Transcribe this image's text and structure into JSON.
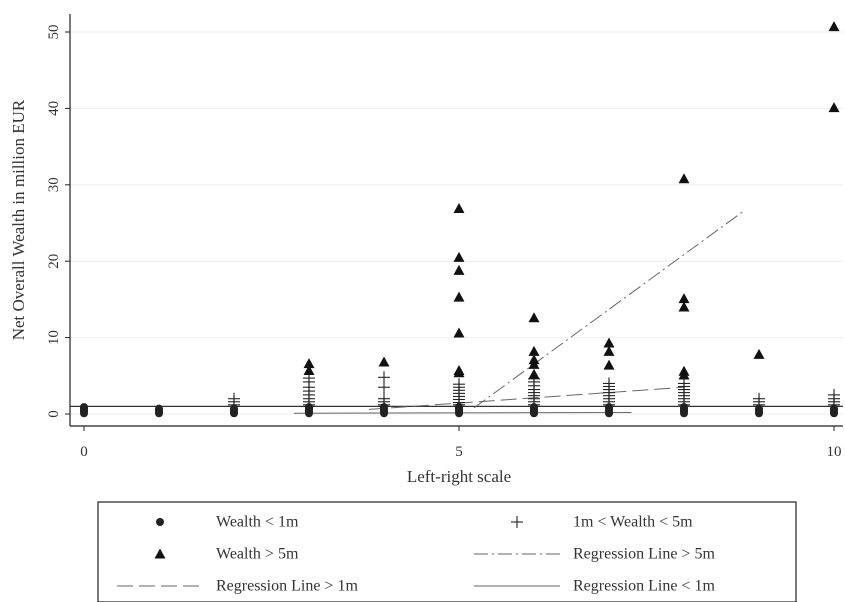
{
  "chart_data": {
    "type": "scatter",
    "title": "",
    "xlabel": "Left-right scale",
    "ylabel": "Net Overall Wealth in million EUR",
    "xlim": [
      0,
      10
    ],
    "ylim": [
      0,
      50
    ],
    "x_ticks": [
      "0",
      "5",
      "10"
    ],
    "y_ticks": [
      "0",
      "10",
      "20",
      "30",
      "40",
      "50"
    ],
    "grid": "horizontal",
    "legend_position": "bottom",
    "series": [
      {
        "name": "Wealth < 1m",
        "marker": "circle",
        "points": [
          [
            0,
            0.1
          ],
          [
            0,
            0.3
          ],
          [
            0,
            0.5
          ],
          [
            0,
            0.7
          ],
          [
            0,
            0.9
          ],
          [
            1,
            0.1
          ],
          [
            1,
            0.3
          ],
          [
            1,
            0.5
          ],
          [
            1,
            0.7
          ],
          [
            2,
            0.1
          ],
          [
            2,
            0.3
          ],
          [
            2,
            0.5
          ],
          [
            2,
            0.7
          ],
          [
            3,
            0.1
          ],
          [
            3,
            0.3
          ],
          [
            3,
            0.5
          ],
          [
            3,
            0.7
          ],
          [
            3,
            0.9
          ],
          [
            4,
            0.1
          ],
          [
            4,
            0.3
          ],
          [
            4,
            0.5
          ],
          [
            4,
            0.7
          ],
          [
            4,
            0.9
          ],
          [
            5,
            0.1
          ],
          [
            5,
            0.3
          ],
          [
            5,
            0.5
          ],
          [
            5,
            0.7
          ],
          [
            5,
            0.9
          ],
          [
            6,
            0.1
          ],
          [
            6,
            0.3
          ],
          [
            6,
            0.5
          ],
          [
            6,
            0.7
          ],
          [
            6,
            0.9
          ],
          [
            7,
            0.1
          ],
          [
            7,
            0.3
          ],
          [
            7,
            0.5
          ],
          [
            7,
            0.7
          ],
          [
            7,
            0.9
          ],
          [
            8,
            0.1
          ],
          [
            8,
            0.3
          ],
          [
            8,
            0.5
          ],
          [
            8,
            0.7
          ],
          [
            8,
            0.9
          ],
          [
            9,
            0.1
          ],
          [
            9,
            0.3
          ],
          [
            9,
            0.5
          ],
          [
            9,
            0.7
          ],
          [
            10,
            0.1
          ],
          [
            10,
            0.3
          ],
          [
            10,
            0.5
          ],
          [
            10,
            0.7
          ]
        ]
      },
      {
        "name": "1m < Wealth < 5m",
        "marker": "plus",
        "points": [
          [
            2,
            1.2
          ],
          [
            2,
            1.6
          ],
          [
            2,
            2.0
          ],
          [
            3,
            1.2
          ],
          [
            3,
            1.6
          ],
          [
            3,
            2.0
          ],
          [
            3,
            2.5
          ],
          [
            3,
            3.0
          ],
          [
            3,
            3.5
          ],
          [
            3,
            4.2
          ],
          [
            3,
            4.7
          ],
          [
            4,
            1.2
          ],
          [
            4,
            1.6
          ],
          [
            4,
            2.0
          ],
          [
            4,
            3.5
          ],
          [
            4,
            4.8
          ],
          [
            5,
            1.2
          ],
          [
            5,
            1.5
          ],
          [
            5,
            1.9
          ],
          [
            5,
            2.3
          ],
          [
            5,
            2.7
          ],
          [
            5,
            3.1
          ],
          [
            5,
            3.5
          ],
          [
            5,
            3.9
          ],
          [
            6,
            1.2
          ],
          [
            6,
            1.6
          ],
          [
            6,
            2.0
          ],
          [
            6,
            2.4
          ],
          [
            6,
            2.8
          ],
          [
            6,
            3.2
          ],
          [
            6,
            3.7
          ],
          [
            6,
            4.2
          ],
          [
            6,
            4.6
          ],
          [
            7,
            1.2
          ],
          [
            7,
            1.6
          ],
          [
            7,
            2.0
          ],
          [
            7,
            2.4
          ],
          [
            7,
            2.8
          ],
          [
            7,
            3.2
          ],
          [
            7,
            3.6
          ],
          [
            7,
            4.0
          ],
          [
            8,
            1.2
          ],
          [
            8,
            1.6
          ],
          [
            8,
            2.0
          ],
          [
            8,
            2.4
          ],
          [
            8,
            2.8
          ],
          [
            8,
            3.2
          ],
          [
            8,
            3.6
          ],
          [
            8,
            4.0
          ],
          [
            9,
            1.2
          ],
          [
            9,
            1.6
          ],
          [
            9,
            2.0
          ],
          [
            10,
            1.2
          ],
          [
            10,
            1.6
          ],
          [
            10,
            2.0
          ],
          [
            10,
            2.5
          ]
        ]
      },
      {
        "name": "Wealth > 5m",
        "marker": "triangle",
        "points": [
          [
            3,
            5.7
          ],
          [
            3,
            6.6
          ],
          [
            4,
            6.8
          ],
          [
            5,
            5.4
          ],
          [
            5,
            5.7
          ],
          [
            5,
            10.6
          ],
          [
            5,
            15.3
          ],
          [
            5,
            18.8
          ],
          [
            5,
            20.5
          ],
          [
            5,
            26.9
          ],
          [
            6,
            5.2
          ],
          [
            6,
            6.5
          ],
          [
            6,
            7.1
          ],
          [
            6,
            8.2
          ],
          [
            6,
            12.6
          ],
          [
            7,
            6.4
          ],
          [
            7,
            8.2
          ],
          [
            7,
            9.3
          ],
          [
            8,
            5.1
          ],
          [
            8,
            5.6
          ],
          [
            8,
            14.0
          ],
          [
            8,
            15.1
          ],
          [
            8,
            30.8
          ],
          [
            9,
            7.8
          ],
          [
            10,
            40.1
          ],
          [
            10,
            50.7
          ]
        ]
      }
    ],
    "regression_lines": [
      {
        "name": "Regression Line > 5m",
        "style": "dash-dot",
        "points": [
          [
            5.2,
            0.8
          ],
          [
            8.8,
            26.6
          ]
        ]
      },
      {
        "name": "Regression Line > 1m",
        "style": "long-dash",
        "points": [
          [
            3.8,
            0.6
          ],
          [
            8.0,
            3.5
          ]
        ]
      },
      {
        "name": "Regression Line < 1m",
        "style": "solid-thin",
        "points": [
          [
            2.8,
            0.1
          ],
          [
            7.3,
            0.2
          ]
        ]
      }
    ],
    "reference_line": {
      "y": 1.0
    }
  },
  "legend": [
    {
      "label": "Wealth < 1m",
      "symbol": "circle"
    },
    {
      "label": "1m < Wealth < 5m",
      "symbol": "plus"
    },
    {
      "label": "Wealth > 5m",
      "symbol": "triangle"
    },
    {
      "label": "Regression Line > 5m",
      "symbol": "dash-dot"
    },
    {
      "label": "Regression Line > 1m",
      "symbol": "long-dash"
    },
    {
      "label": "Regression Line < 1m",
      "symbol": "solid-thin"
    }
  ]
}
